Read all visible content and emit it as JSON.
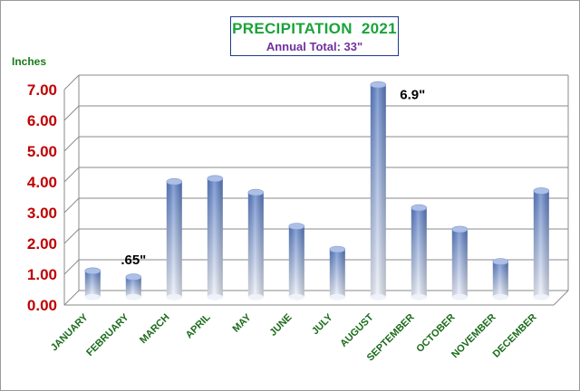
{
  "chart_data": {
    "type": "bar",
    "title": "PRECIPITATION  2021",
    "subtitle": "Annual Total:  33\"",
    "ylabel": "Inches",
    "xlabel": "",
    "categories": [
      "JANUARY",
      "FEBRUARY",
      "MARCH",
      "APRIL",
      "MAY",
      "JUNE",
      "JULY",
      "AUGUST",
      "SEPTEMBER",
      "OCTOBER",
      "NOVEMBER",
      "DECEMBER"
    ],
    "values": [
      0.85,
      0.65,
      3.75,
      3.85,
      3.4,
      2.3,
      1.55,
      6.9,
      2.9,
      2.2,
      1.15,
      3.45
    ],
    "ylim": [
      0,
      7
    ],
    "yticks": [
      "0.00",
      "1.00",
      "2.00",
      "3.00",
      "4.00",
      "5.00",
      "6.00",
      "7.00"
    ],
    "data_labels": [
      {
        "category": "FEBRUARY",
        "text": ".65\""
      },
      {
        "category": "AUGUST",
        "text": "6.9\""
      }
    ],
    "grid": true,
    "colors": {
      "bar_dark": "#5b7fc7",
      "bar_light": "#eef2fb",
      "ytick": "#c00000",
      "xtick": "#1a6b1a",
      "grid": "#8a8a8a"
    }
  }
}
